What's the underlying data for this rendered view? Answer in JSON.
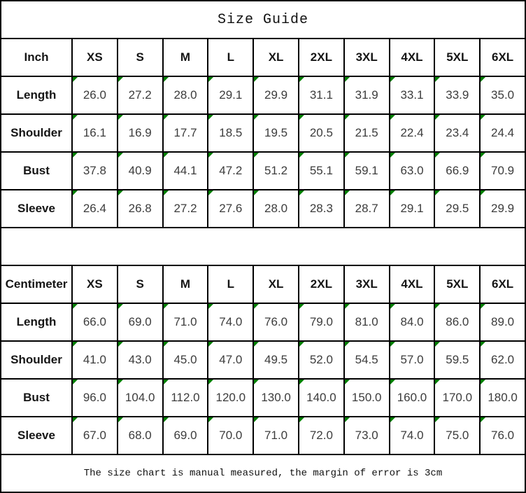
{
  "title": "Size Guide",
  "footer_note": "The size chart is manual measured, the margin of error is 3cm",
  "colors": {
    "grid_line": "#000000",
    "background": "#ffffff",
    "cell_flag_green": "#007d00",
    "text_dark": "#151515",
    "text_value": "#3c3c3c"
  },
  "icons": {
    "cell_flag": "green-corner-triangle"
  },
  "tables": [
    {
      "unit_label": "Inch",
      "sizes": [
        "XS",
        "S",
        "M",
        "L",
        "XL",
        "2XL",
        "3XL",
        "4XL",
        "5XL",
        "6XL"
      ],
      "rows": [
        {
          "label": "Length",
          "values": [
            "26.0",
            "27.2",
            "28.0",
            "29.1",
            "29.9",
            "31.1",
            "31.9",
            "33.1",
            "33.9",
            "35.0"
          ]
        },
        {
          "label": "Shoulder",
          "values": [
            "16.1",
            "16.9",
            "17.7",
            "18.5",
            "19.5",
            "20.5",
            "21.5",
            "22.4",
            "23.4",
            "24.4"
          ]
        },
        {
          "label": "Bust",
          "values": [
            "37.8",
            "40.9",
            "44.1",
            "47.2",
            "51.2",
            "55.1",
            "59.1",
            "63.0",
            "66.9",
            "70.9"
          ]
        },
        {
          "label": "Sleeve",
          "values": [
            "26.4",
            "26.8",
            "27.2",
            "27.6",
            "28.0",
            "28.3",
            "28.7",
            "29.1",
            "29.5",
            "29.9"
          ]
        }
      ]
    },
    {
      "unit_label": "Centimeter",
      "sizes": [
        "XS",
        "S",
        "M",
        "L",
        "XL",
        "2XL",
        "3XL",
        "4XL",
        "5XL",
        "6XL"
      ],
      "rows": [
        {
          "label": "Length",
          "values": [
            "66.0",
            "69.0",
            "71.0",
            "74.0",
            "76.0",
            "79.0",
            "81.0",
            "84.0",
            "86.0",
            "89.0"
          ]
        },
        {
          "label": "Shoulder",
          "values": [
            "41.0",
            "43.0",
            "45.0",
            "47.0",
            "49.5",
            "52.0",
            "54.5",
            "57.0",
            "59.5",
            "62.0"
          ]
        },
        {
          "label": "Bust",
          "values": [
            "96.0",
            "104.0",
            "112.0",
            "120.0",
            "130.0",
            "140.0",
            "150.0",
            "160.0",
            "170.0",
            "180.0"
          ]
        },
        {
          "label": "Sleeve",
          "values": [
            "67.0",
            "68.0",
            "69.0",
            "70.0",
            "71.0",
            "72.0",
            "73.0",
            "74.0",
            "75.0",
            "76.0"
          ]
        }
      ]
    }
  ]
}
